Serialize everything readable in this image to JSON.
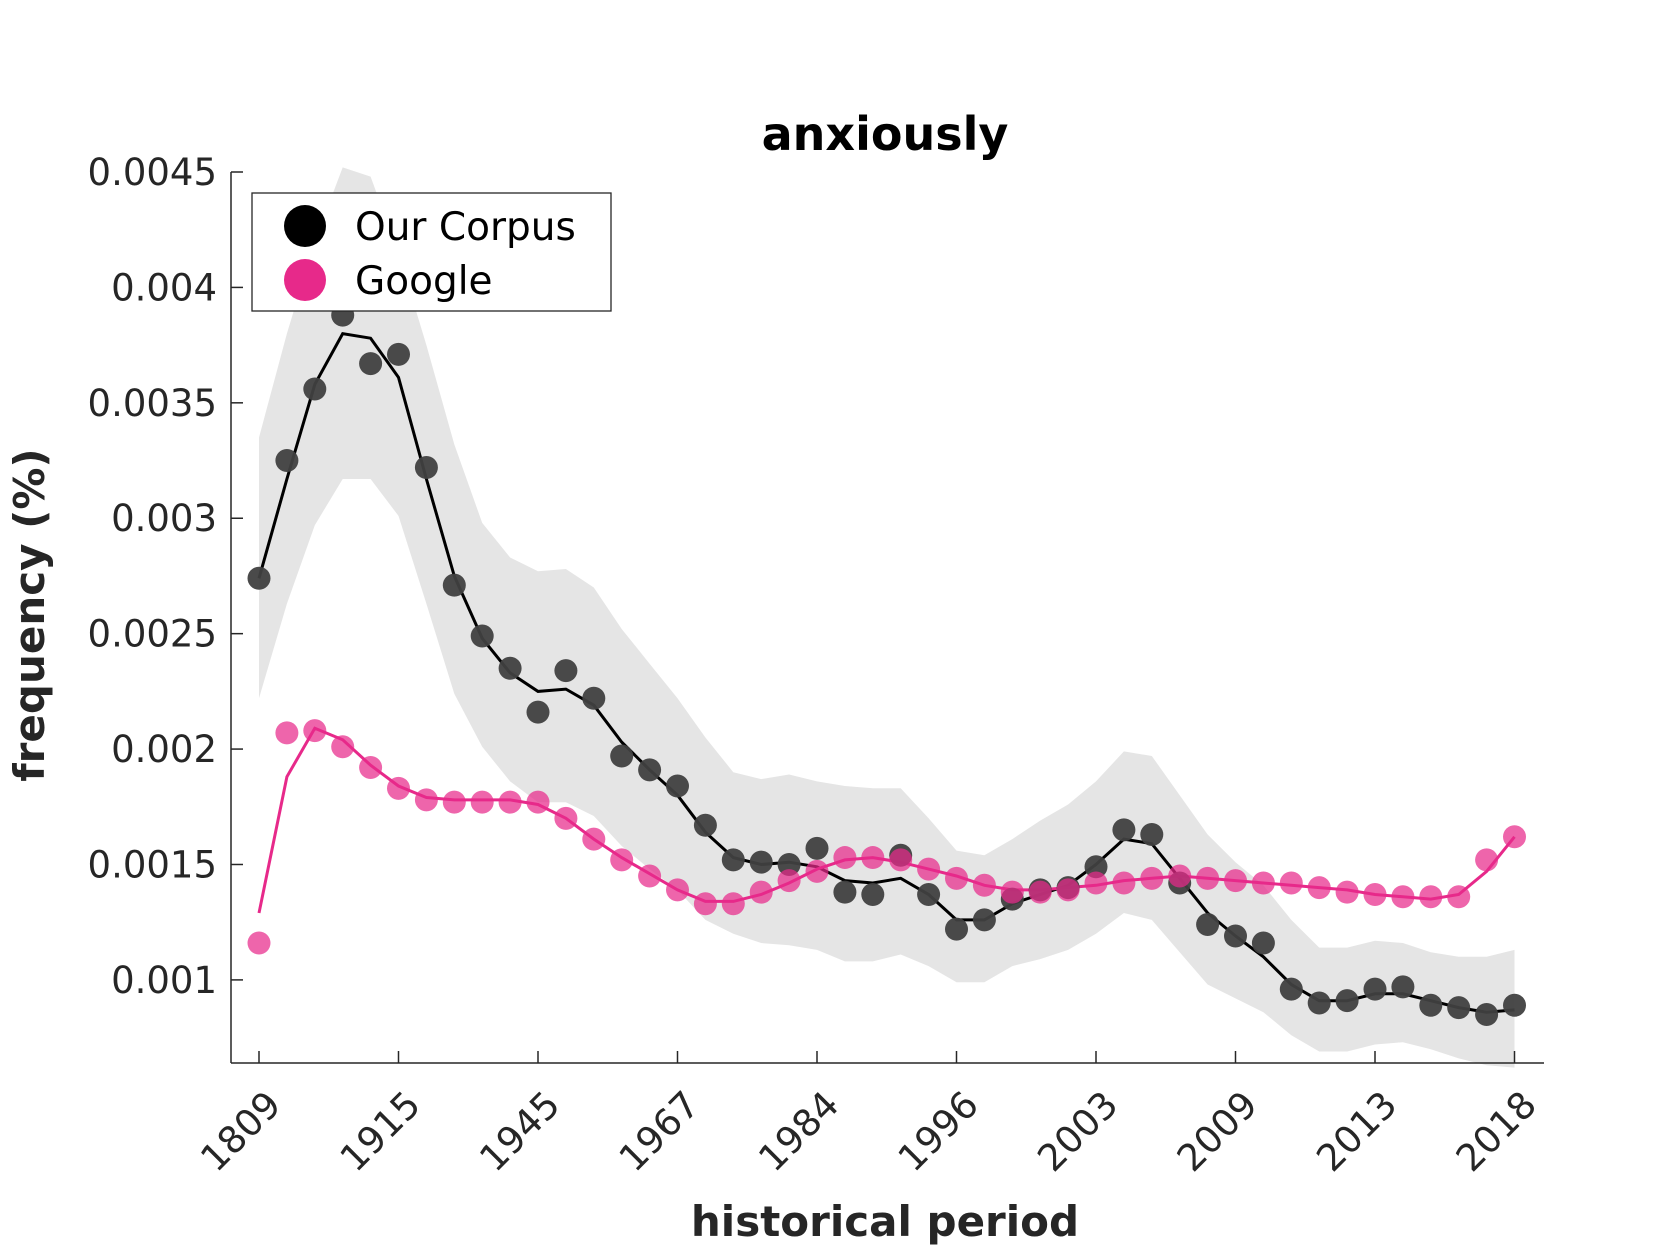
{
  "chart_data": {
    "type": "line",
    "title": "anxiously",
    "xlabel": "historical period",
    "ylabel": "frequency (%)",
    "x_tick_labels": [
      "1809",
      "1915",
      "1945",
      "1967",
      "1984",
      "1996",
      "2003",
      "2009",
      "2013",
      "2018"
    ],
    "y_ticks": [
      0.001,
      0.0015,
      0.002,
      0.0025,
      0.003,
      0.0035,
      0.004,
      0.0045
    ],
    "y_tick_labels": [
      "0.001",
      "0.0015",
      "0.002",
      "0.0025",
      "0.003",
      "0.0035",
      "0.004",
      "0.0045"
    ],
    "ylim": [
      0.00064,
      0.0045
    ],
    "legend_position": "top-left",
    "grid": false,
    "series": [
      {
        "name": "Our Corpus",
        "color": "#000000",
        "marker_color": "#404040",
        "points": [
          0.00274,
          0.00325,
          0.00356,
          0.00388,
          0.00367,
          0.00371,
          0.00322,
          0.00271,
          0.00249,
          0.00235,
          0.00216,
          0.00234,
          0.00222,
          0.00197,
          0.00191,
          0.00184,
          0.00167,
          0.00152,
          0.00151,
          0.0015,
          0.00157,
          0.00138,
          0.00137,
          0.00154,
          0.00137,
          0.00122,
          0.00126,
          0.00135,
          0.00139,
          0.0014,
          0.00149,
          0.00165,
          0.00163,
          0.00142,
          0.00124,
          0.00119,
          0.00116,
          0.00096,
          0.0009,
          0.00091,
          0.00096,
          0.00097,
          0.00089,
          0.00088,
          0.00085,
          0.00089
        ],
        "trend": [
          0.00274,
          0.00317,
          0.00358,
          0.0038,
          0.00378,
          0.00361,
          0.00317,
          0.00275,
          0.00248,
          0.00233,
          0.00225,
          0.00226,
          0.00219,
          0.00203,
          0.00191,
          0.0018,
          0.00164,
          0.00153,
          0.0015,
          0.00151,
          0.00149,
          0.00143,
          0.00142,
          0.00144,
          0.00137,
          0.00126,
          0.00126,
          0.00133,
          0.00137,
          0.00141,
          0.0015,
          0.00161,
          0.00159,
          0.00144,
          0.00129,
          0.00119,
          0.0011,
          0.00098,
          0.00091,
          0.00091,
          0.00094,
          0.00094,
          0.00091,
          0.00088,
          0.00086,
          0.00087
        ],
        "band_upper": [
          0.00335,
          0.0038,
          0.0042,
          0.00452,
          0.00448,
          0.00415,
          0.00375,
          0.00332,
          0.00298,
          0.00283,
          0.00277,
          0.00278,
          0.0027,
          0.00252,
          0.00237,
          0.00222,
          0.00205,
          0.0019,
          0.00187,
          0.00189,
          0.00186,
          0.00184,
          0.00183,
          0.00183,
          0.0017,
          0.00156,
          0.00154,
          0.00161,
          0.00169,
          0.00176,
          0.00186,
          0.00199,
          0.00197,
          0.0018,
          0.00163,
          0.00151,
          0.00141,
          0.00126,
          0.00114,
          0.00114,
          0.00117,
          0.00116,
          0.00112,
          0.0011,
          0.0011,
          0.00113
        ],
        "band_lower": [
          0.00222,
          0.00263,
          0.00297,
          0.00317,
          0.00317,
          0.00301,
          0.00263,
          0.00224,
          0.00201,
          0.00186,
          0.00177,
          0.00177,
          0.00171,
          0.00158,
          0.00148,
          0.00139,
          0.00126,
          0.0012,
          0.00116,
          0.00115,
          0.00113,
          0.00108,
          0.00108,
          0.00111,
          0.00106,
          0.00099,
          0.00099,
          0.00106,
          0.00109,
          0.00113,
          0.0012,
          0.00129,
          0.00126,
          0.00112,
          0.00098,
          0.00092,
          0.00086,
          0.00076,
          0.00069,
          0.00069,
          0.00072,
          0.00073,
          0.0007,
          0.00066,
          0.00063,
          0.00062
        ]
      },
      {
        "name": "Google",
        "color": "#e7298a",
        "marker_color": "#e7298a",
        "points": [
          0.00116,
          0.00207,
          0.00208,
          0.00201,
          0.00192,
          0.00183,
          0.00178,
          0.00177,
          0.00177,
          0.00177,
          0.00177,
          0.0017,
          0.00161,
          0.00152,
          0.00145,
          0.00139,
          0.00133,
          0.00133,
          0.00138,
          0.00143,
          0.00147,
          0.00153,
          0.00153,
          0.00152,
          0.00148,
          0.00144,
          0.00141,
          0.00138,
          0.00138,
          0.00139,
          0.00142,
          0.00142,
          0.00144,
          0.00145,
          0.00144,
          0.00143,
          0.00142,
          0.00142,
          0.0014,
          0.00138,
          0.00137,
          0.00136,
          0.00136,
          0.00136,
          0.00152,
          0.00162
        ],
        "trend": [
          0.00129,
          0.00188,
          0.00209,
          0.00204,
          0.00193,
          0.00184,
          0.00179,
          0.00178,
          0.00178,
          0.00178,
          0.00176,
          0.0017,
          0.00161,
          0.00153,
          0.00146,
          0.00139,
          0.00134,
          0.00134,
          0.00137,
          0.00142,
          0.00148,
          0.00152,
          0.00153,
          0.00151,
          0.00148,
          0.00145,
          0.00141,
          0.00139,
          0.00139,
          0.0014,
          0.00141,
          0.00143,
          0.00144,
          0.00145,
          0.00144,
          0.00143,
          0.00142,
          0.00141,
          0.0014,
          0.00139,
          0.00137,
          0.00136,
          0.00135,
          0.00137,
          0.00147,
          0.00162
        ]
      }
    ]
  }
}
